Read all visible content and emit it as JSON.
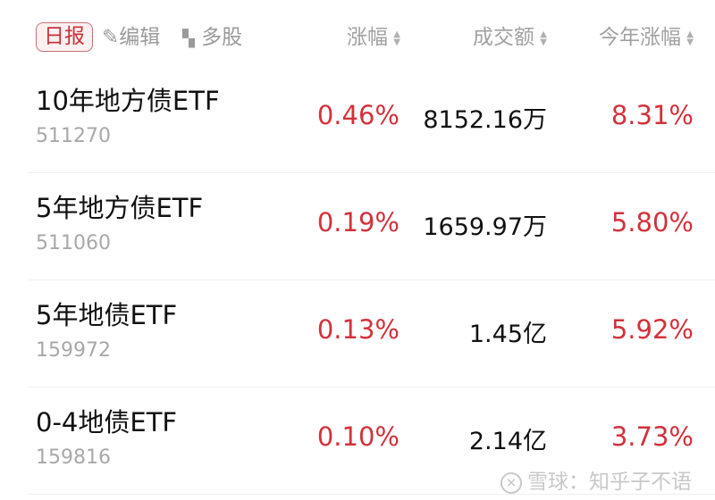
{
  "header": {
    "daily_label": "日报",
    "edit_label": "编辑",
    "multi_label": "多股",
    "columns": [
      "涨幅",
      "成交额",
      "今年涨幅"
    ]
  },
  "rows": [
    {
      "name": "10年地方债ETF",
      "code": "511270",
      "change": "0.46%",
      "amount": "8152.16万",
      "ytd": "8.31%"
    },
    {
      "name": "5年地方债ETF",
      "code": "511060",
      "change": "0.19%",
      "amount": "1659.97万",
      "ytd": "5.80%"
    },
    {
      "name": "5年地债ETF",
      "code": "159972",
      "change": "0.13%",
      "amount": "1.45亿",
      "ytd": "5.92%"
    },
    {
      "name": "0-4地债ETF",
      "code": "159816",
      "change": "0.10%",
      "amount": "2.14亿",
      "ytd": "3.73%"
    }
  ],
  "watermark": "雪球：知乎子不语",
  "colors": {
    "up": "#d2323c",
    "muted": "#a0a0a0"
  }
}
